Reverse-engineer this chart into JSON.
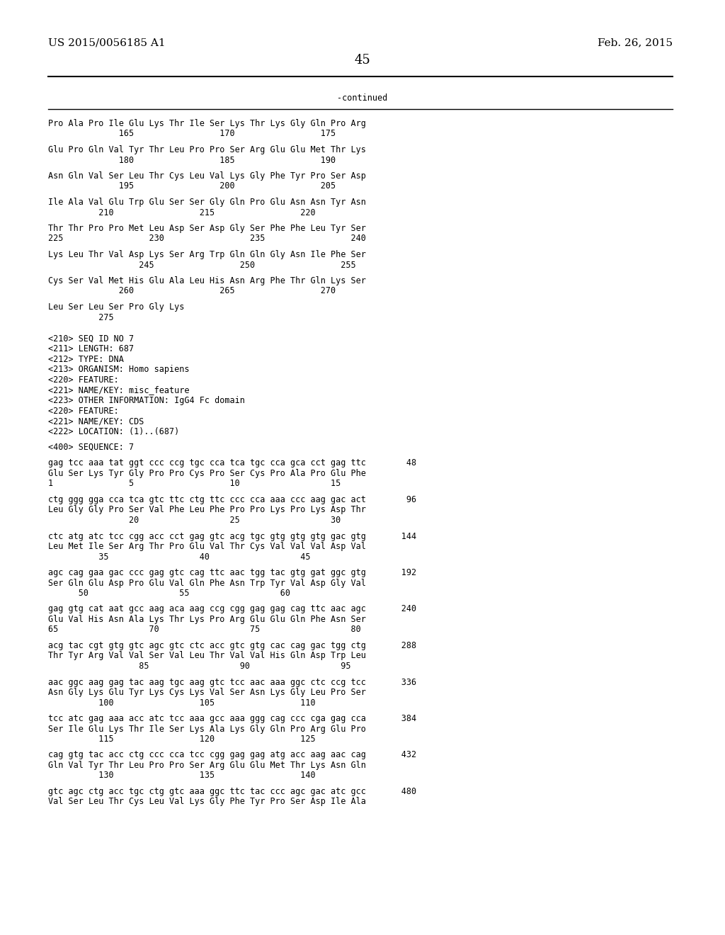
{
  "header_left": "US 2015/0056185 A1",
  "header_right": "Feb. 26, 2015",
  "page_number": "45",
  "continued_label": "-continued",
  "background_color": "#ffffff",
  "text_color": "#000000",
  "mono_font_size": 8.5,
  "header_font_size": 11,
  "page_num_font_size": 13,
  "lines": [
    "Pro Ala Pro Ile Glu Lys Thr Ile Ser Lys Thr Lys Gly Gln Pro Arg",
    "              165                 170                 175",
    "",
    "Glu Pro Gln Val Tyr Thr Leu Pro Pro Ser Arg Glu Glu Met Thr Lys",
    "              180                 185                 190",
    "",
    "Asn Gln Val Ser Leu Thr Cys Leu Val Lys Gly Phe Tyr Pro Ser Asp",
    "              195                 200                 205",
    "",
    "Ile Ala Val Glu Trp Glu Ser Ser Gly Gln Pro Glu Asn Asn Tyr Asn",
    "          210                 215                 220",
    "",
    "Thr Thr Pro Pro Met Leu Asp Ser Asp Gly Ser Phe Phe Leu Tyr Ser",
    "225                 230                 235                 240",
    "",
    "Lys Leu Thr Val Asp Lys Ser Arg Trp Gln Gln Gly Asn Ile Phe Ser",
    "                  245                 250                 255",
    "",
    "Cys Ser Val Met His Glu Ala Leu His Asn Arg Phe Thr Gln Lys Ser",
    "              260                 265                 270",
    "",
    "Leu Ser Leu Ser Pro Gly Lys",
    "          275",
    "",
    "",
    "<210> SEQ ID NO 7",
    "<211> LENGTH: 687",
    "<212> TYPE: DNA",
    "<213> ORGANISM: Homo sapiens",
    "<220> FEATURE:",
    "<221> NAME/KEY: misc_feature",
    "<223> OTHER INFORMATION: IgG4 Fc domain",
    "<220> FEATURE:",
    "<221> NAME/KEY: CDS",
    "<222> LOCATION: (1)..(687)",
    "",
    "<400> SEQUENCE: 7",
    "",
    "gag tcc aaa tat ggt ccc ccg tgc cca tca tgc cca gca cct gag ttc        48",
    "Glu Ser Lys Tyr Gly Pro Pro Cys Pro Ser Cys Pro Ala Pro Glu Phe",
    "1               5                   10                  15",
    "",
    "ctg ggg gga cca tca gtc ttc ctg ttc ccc cca aaa ccc aag gac act        96",
    "Leu Gly Gly Pro Ser Val Phe Leu Phe Pro Pro Lys Pro Lys Asp Thr",
    "                20                  25                  30",
    "",
    "ctc atg atc tcc cgg acc cct gag gtc acg tgc gtg gtg gtg gac gtg       144",
    "Leu Met Ile Ser Arg Thr Pro Glu Val Thr Cys Val Val Val Asp Val",
    "          35                  40                  45",
    "",
    "agc cag gaa gac ccc gag gtc cag ttc aac tgg tac gtg gat ggc gtg       192",
    "Ser Gln Glu Asp Pro Glu Val Gln Phe Asn Trp Tyr Val Asp Gly Val",
    "      50                  55                  60",
    "",
    "gag gtg cat aat gcc aag aca aag ccg cgg gag gag cag ttc aac agc       240",
    "Glu Val His Asn Ala Lys Thr Lys Pro Arg Glu Glu Gln Phe Asn Ser",
    "65                  70                  75                  80",
    "",
    "acg tac cgt gtg gtc agc gtc ctc acc gtc gtg cac cag gac tgg ctg       288",
    "Thr Tyr Arg Val Val Ser Val Leu Thr Val Val His Gln Asp Trp Leu",
    "                  85                  90                  95",
    "",
    "aac ggc aag gag tac aag tgc aag gtc tcc aac aaa ggc ctc ccg tcc       336",
    "Asn Gly Lys Glu Tyr Lys Cys Lys Val Ser Asn Lys Gly Leu Pro Ser",
    "          100                 105                 110",
    "",
    "tcc atc gag aaa acc atc tcc aaa gcc aaa ggg cag ccc cga gag cca       384",
    "Ser Ile Glu Lys Thr Ile Ser Lys Ala Lys Gly Gln Pro Arg Glu Pro",
    "          115                 120                 125",
    "",
    "cag gtg tac acc ctg ccc cca tcc cgg gag gag atg acc aag aac cag       432",
    "Gln Val Tyr Thr Leu Pro Pro Ser Arg Glu Glu Met Thr Lys Asn Gln",
    "          130                 135                 140",
    "",
    "gtc agc ctg acc tgc ctg gtc aaa ggc ttc tac ccc agc gac atc gcc       480",
    "Val Ser Leu Thr Cys Leu Val Lys Gly Phe Tyr Pro Ser Asp Ile Ala"
  ]
}
